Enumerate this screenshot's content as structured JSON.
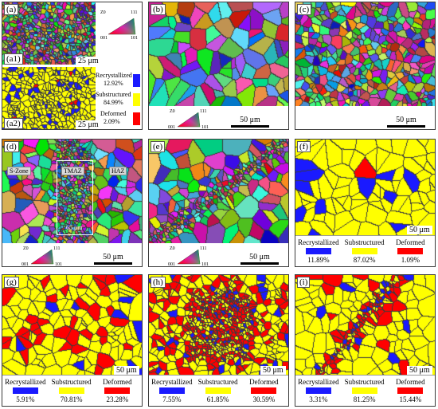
{
  "panels": {
    "a": {
      "label": "(a)"
    },
    "a1": {
      "label": "(a1)",
      "scale": "25 μm"
    },
    "a2": {
      "label": "(a2)",
      "scale": "25 μm"
    },
    "b": {
      "label": "(b)",
      "scale": "50 μm"
    },
    "c": {
      "label": "(c)",
      "scale": "50 μm"
    },
    "d": {
      "label": "(d)",
      "scale": "50 μm",
      "zones": [
        "S-Zone",
        "TMAZ",
        "HAZ"
      ],
      "bar_value": "65 μm"
    },
    "e": {
      "label": "(e)",
      "scale": "50 μm"
    },
    "f": {
      "label": "(f)",
      "scale": "50 μm",
      "recrystallized": "11.89%",
      "substructured": "87.02%",
      "deformed": "1.09%"
    },
    "g": {
      "label": "(g)",
      "scale": "50 μm",
      "recrystallized": "5.91%",
      "substructured": "70.81%",
      "deformed": "23.28%"
    },
    "h": {
      "label": "(h)",
      "scale": "50 μm",
      "recrystallized": "7.55%",
      "substructured": "61.85%",
      "deformed": "30.59%"
    },
    "i": {
      "label": "(i)",
      "scale": "50 μm",
      "recrystallized": "3.31%",
      "substructured": "81.25%",
      "deformed": "15.44%"
    }
  },
  "a_legend": {
    "recrystallized": "Recrystallized",
    "recrystallized_value": "12.92%",
    "substructured": "Substructured",
    "substructured_value": "84.99%",
    "deformed": "Deformed",
    "deformed_value": "2.09%"
  },
  "legend_labels": {
    "recrystallized": "Recrystallized",
    "substructured": "Substructured",
    "deformed": "Deformed"
  },
  "ipf": {
    "a": "001",
    "b": "101",
    "c": "111",
    "d": "Z0"
  },
  "colors": {
    "recrystallized": "#1a1aff",
    "substructured": "#ffff00",
    "deformed": "#ff0000",
    "boundary": "#555555"
  }
}
